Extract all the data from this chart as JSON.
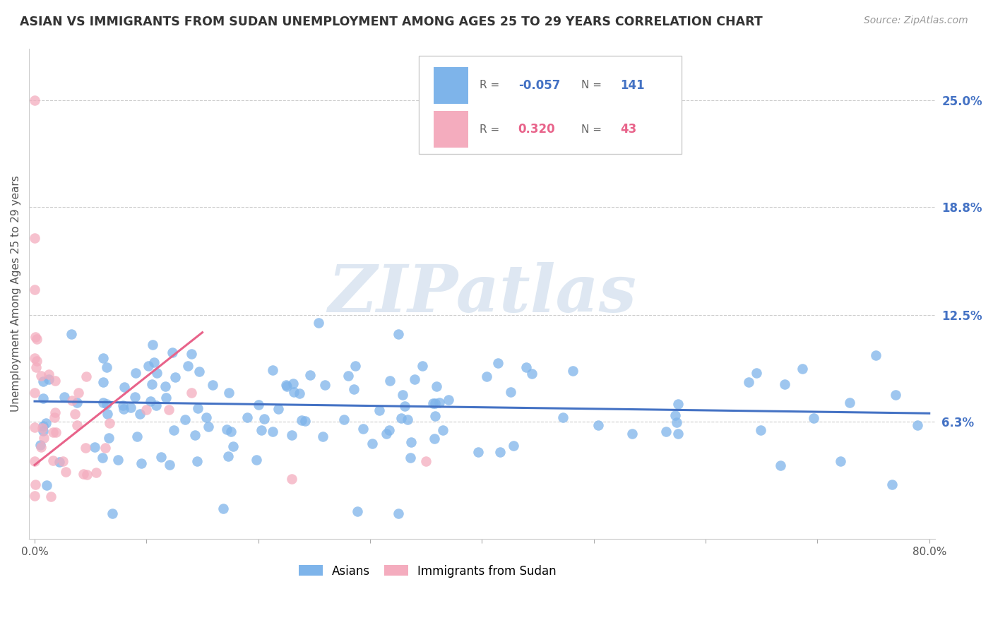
{
  "title": "ASIAN VS IMMIGRANTS FROM SUDAN UNEMPLOYMENT AMONG AGES 25 TO 29 YEARS CORRELATION CHART",
  "source_text": "Source: ZipAtlas.com",
  "ylabel": "Unemployment Among Ages 25 to 29 years",
  "xlim": [
    0.0,
    0.8
  ],
  "ylim": [
    -0.005,
    0.28
  ],
  "ytick_positions": [
    0.063,
    0.125,
    0.188,
    0.25
  ],
  "ytick_labels": [
    "6.3%",
    "12.5%",
    "18.8%",
    "25.0%"
  ],
  "asian_R": -0.057,
  "asian_N": 141,
  "sudan_R": 0.32,
  "sudan_N": 43,
  "asian_color": "#7EB4EA",
  "sudan_color": "#F4ACBE",
  "asian_line_color": "#4472C4",
  "sudan_line_color": "#E8638A",
  "watermark": "ZIPatlas",
  "watermark_color": "#C8D8EA",
  "asian_line_x0": 0.0,
  "asian_line_x1": 0.8,
  "asian_line_y0": 0.075,
  "asian_line_y1": 0.068,
  "sudan_line_x0": 0.0,
  "sudan_line_x1": 0.15,
  "sudan_line_y0": 0.038,
  "sudan_line_y1": 0.115
}
